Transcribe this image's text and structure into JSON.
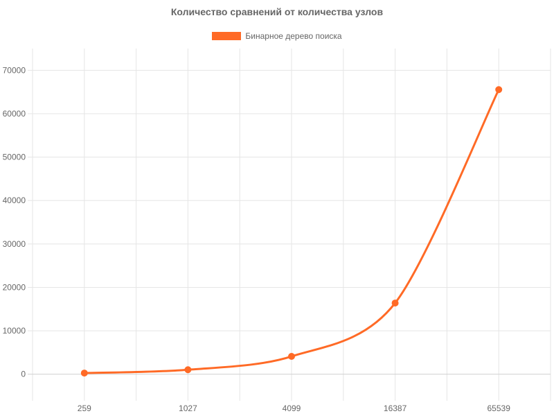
{
  "chart_data": {
    "type": "line",
    "title": "Количество сравнений от количества узлов",
    "categories": [
      "259",
      "1027",
      "4099",
      "16387",
      "65539"
    ],
    "series": [
      {
        "name": "Бинарное дерево поиска",
        "values": [
          259,
          1027,
          4099,
          16387,
          65539
        ]
      }
    ],
    "xlabel": "",
    "ylabel": "",
    "ylim": [
      -5000,
      75000
    ],
    "yticks": [
      "0",
      "10000",
      "20000",
      "30000",
      "40000",
      "50000",
      "60000",
      "70000"
    ],
    "legend": "top",
    "grid": true,
    "colors": {
      "line": "#ff6a26",
      "grid": "#e5e5e5",
      "zero_line": "#cfcfcf",
      "text": "#666666"
    }
  }
}
